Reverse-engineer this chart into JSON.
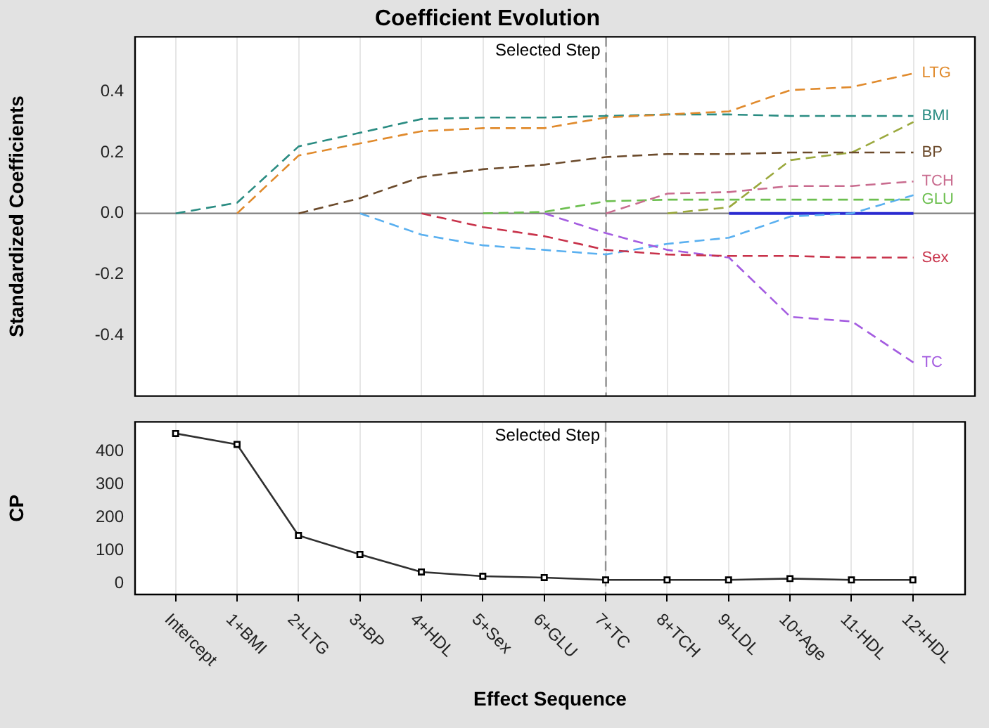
{
  "chart_data": [
    {
      "type": "line",
      "title": "Coefficient Evolution",
      "ylabel": "Standardized Coefficients",
      "categories": [
        "Intercept",
        "1+BMI",
        "2+LTG",
        "3+BP",
        "4+HDL",
        "5+Sex",
        "6+GLU",
        "7+TC",
        "8+TCH",
        "9+LDL",
        "10+Age",
        "11-HDL",
        "12+HDL"
      ],
      "ylim": [
        -0.6,
        0.58
      ],
      "yticks": [
        -0.4,
        -0.2,
        {
          "value": 0,
          "label": "0.0"
        },
        0.2,
        0.4
      ],
      "grid": "x",
      "legend": false,
      "marker": "none",
      "tick_labels": "y",
      "ref_lines": [
        {
          "axis": "x",
          "value": "7+TC",
          "label": "Selected Step",
          "color": "#909090",
          "line_style": "dashed"
        },
        {
          "axis": "y",
          "value": 0,
          "color": "#808080",
          "line_style": "solid"
        }
      ],
      "series": [
        {
          "name": "LTG",
          "color": "#e08a2c",
          "line_style": "dashed",
          "values": [
            null,
            0,
            0.19,
            0.23,
            0.27,
            0.28,
            0.28,
            0.315,
            0.325,
            0.335,
            0.405,
            0.415,
            0.46
          ]
        },
        {
          "name": "BMI",
          "color": "#2a8c82",
          "line_style": "dashed",
          "values": [
            0,
            0.035,
            0.22,
            0.265,
            0.31,
            0.315,
            0.315,
            0.32,
            0.325,
            0.325,
            0.32,
            0.32,
            0.32
          ]
        },
        {
          "name": "BP",
          "color": "#6b4a2b",
          "line_style": "dashed",
          "values": [
            null,
            null,
            0,
            0.05,
            0.12,
            0.145,
            0.16,
            0.185,
            0.195,
            0.195,
            0.2,
            0.2,
            0.2
          ]
        },
        {
          "name": "TCH",
          "color": "#c96c8f",
          "line_style": "dashed",
          "values": [
            null,
            null,
            null,
            null,
            null,
            null,
            null,
            0,
            0.065,
            0.07,
            0.09,
            0.09,
            0.105
          ]
        },
        {
          "name": "GLU",
          "color": "#6cbf4f",
          "line_style": "dashed",
          "values": [
            null,
            null,
            null,
            null,
            null,
            0,
            0.005,
            0.04,
            0.045,
            0.045,
            0.045,
            0.045,
            0.045
          ]
        },
        {
          "name": "Sex",
          "color": "#c8324a",
          "line_style": "dashed",
          "values": [
            null,
            null,
            null,
            null,
            0,
            -0.045,
            -0.075,
            -0.12,
            -0.135,
            -0.14,
            -0.14,
            -0.145,
            -0.145
          ]
        },
        {
          "name": "TC",
          "color": "#a45ce0",
          "line_style": "dashed",
          "values": [
            null,
            null,
            null,
            null,
            null,
            null,
            0,
            -0.065,
            -0.12,
            -0.145,
            -0.34,
            -0.355,
            -0.49
          ]
        },
        {
          "color": "#5ab0f0",
          "line_style": "dashed",
          "values": [
            null,
            null,
            null,
            0,
            -0.07,
            -0.105,
            -0.12,
            -0.135,
            -0.1,
            -0.08,
            -0.01,
            0,
            0.06
          ]
        },
        {
          "color": "#9aa83c",
          "line_style": "dashed",
          "values": [
            null,
            null,
            null,
            null,
            null,
            null,
            null,
            null,
            0,
            0.02,
            0.175,
            0.2,
            0.3
          ]
        },
        {
          "color": "#2a2ad0",
          "line_style": "solid",
          "values": [
            null,
            null,
            null,
            null,
            null,
            null,
            null,
            null,
            null,
            0,
            0,
            0,
            0
          ]
        }
      ]
    },
    {
      "type": "line",
      "xlabel": "Effect Sequence",
      "ylabel": "CP",
      "categories": [
        "Intercept",
        "1+BMI",
        "2+LTG",
        "3+BP",
        "4+HDL",
        "5+Sex",
        "6+GLU",
        "7+TC",
        "8+TCH",
        "9+LDL",
        "10+Age",
        "11-HDL",
        "12+HDL"
      ],
      "ylim": [
        -33,
        488
      ],
      "yticks": [
        0,
        100,
        200,
        300,
        400
      ],
      "grid": "x",
      "legend": false,
      "marker": "square",
      "line_style": "solid",
      "ref_lines": [
        {
          "axis": "x",
          "value": "7+TC",
          "label": "Selected Step",
          "color": "#909090",
          "line_style": "dashed"
        }
      ],
      "color": "#303030",
      "values": [
        453,
        420,
        145,
        88,
        35,
        22,
        18,
        11,
        11,
        11,
        15,
        11,
        11
      ]
    }
  ]
}
